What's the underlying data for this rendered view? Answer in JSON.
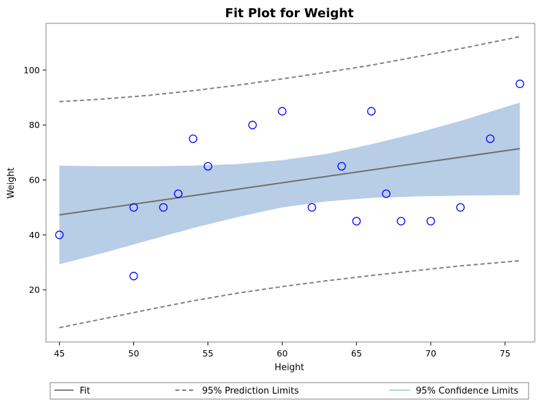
{
  "chart_data": {
    "type": "scatter",
    "title": "Fit Plot for Weight",
    "xlabel": "Height",
    "ylabel": "Weight",
    "xlim": [
      44.1,
      77.0
    ],
    "ylim": [
      1.0,
      117.0
    ],
    "xticks": [
      45,
      50,
      55,
      60,
      65,
      70,
      75
    ],
    "yticks": [
      20,
      40,
      60,
      80,
      100
    ],
    "grid": false,
    "legend_position": "bottom",
    "points": [
      {
        "x": 45,
        "y": 40
      },
      {
        "x": 50,
        "y": 50
      },
      {
        "x": 50,
        "y": 25
      },
      {
        "x": 52,
        "y": 50
      },
      {
        "x": 53,
        "y": 55
      },
      {
        "x": 54,
        "y": 75
      },
      {
        "x": 55,
        "y": 65
      },
      {
        "x": 58,
        "y": 80
      },
      {
        "x": 60,
        "y": 85
      },
      {
        "x": 62,
        "y": 50
      },
      {
        "x": 64,
        "y": 65
      },
      {
        "x": 65,
        "y": 45
      },
      {
        "x": 66,
        "y": 85
      },
      {
        "x": 67,
        "y": 55
      },
      {
        "x": 68,
        "y": 45
      },
      {
        "x": 70,
        "y": 45
      },
      {
        "x": 72,
        "y": 50
      },
      {
        "x": 74,
        "y": 75
      },
      {
        "x": 76,
        "y": 95
      }
    ],
    "fit": {
      "x": [
        45,
        76
      ],
      "y": [
        47.3,
        71.4
      ]
    },
    "confidence_band": {
      "x": [
        45,
        48,
        51,
        54,
        57,
        60,
        63,
        66,
        69,
        72,
        76
      ],
      "upper": [
        65.2,
        65.0,
        65.0,
        65.2,
        65.8,
        67.2,
        69.5,
        73.0,
        77.0,
        81.5,
        88.2
      ],
      "lower": [
        29.3,
        33.5,
        38.0,
        42.5,
        46.5,
        50.0,
        52.2,
        53.5,
        54.0,
        54.3,
        54.5
      ]
    },
    "prediction_band": {
      "x": [
        45,
        48,
        51,
        54,
        57,
        60,
        63,
        66,
        69,
        72,
        76
      ],
      "upper": [
        88.5,
        89.5,
        90.8,
        92.5,
        94.5,
        96.8,
        99.2,
        101.8,
        104.8,
        107.8,
        112.2
      ],
      "lower": [
        6.2,
        9.5,
        12.8,
        16.0,
        18.8,
        21.2,
        23.3,
        25.2,
        27.0,
        28.7,
        30.6
      ]
    },
    "legend": [
      {
        "label": "Fit",
        "kind": "fit"
      },
      {
        "label": "95% Prediction Limits",
        "kind": "prediction"
      },
      {
        "label": "95% Confidence Limits",
        "kind": "confidence"
      }
    ],
    "colors": {
      "points": "#0000ff",
      "fit": "#808080",
      "prediction": "#808080",
      "confidence": "#b8cde6"
    }
  }
}
